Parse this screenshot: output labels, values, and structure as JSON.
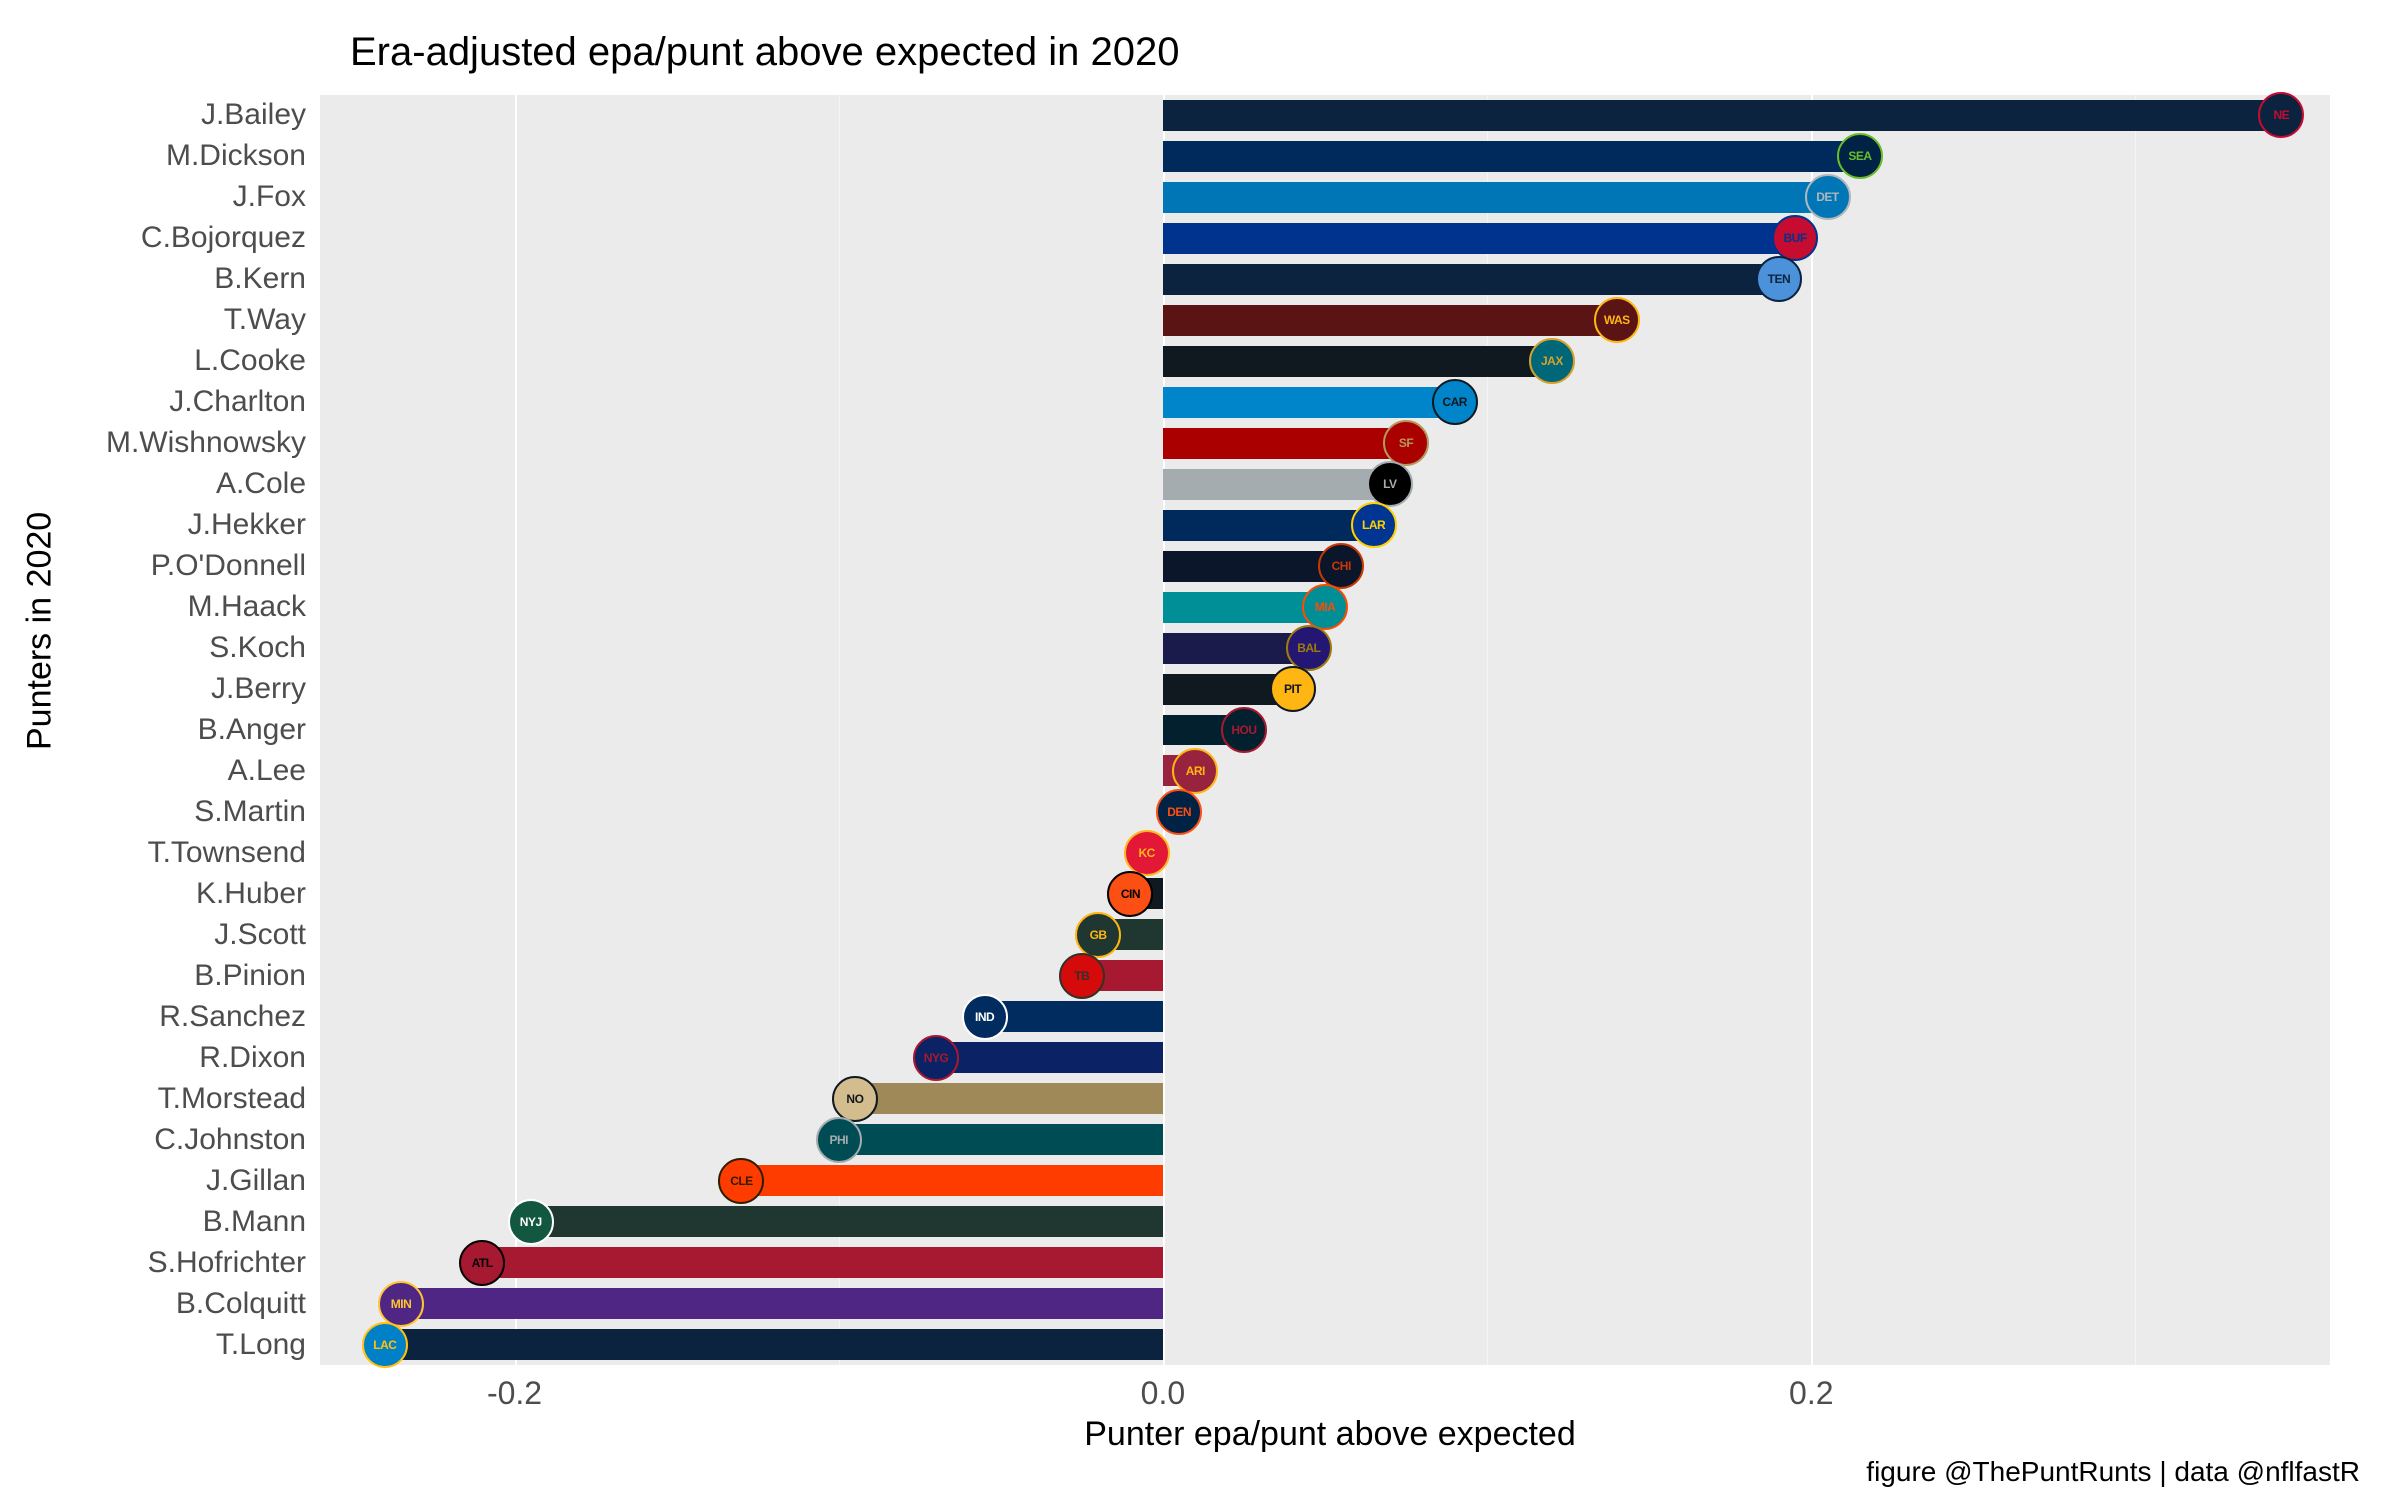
{
  "chart": {
    "type": "bar-horizontal",
    "title": "Era-adjusted epa/punt above expected in 2020",
    "x_axis_title": "Punter epa/punt above expected",
    "y_axis_title": "Punters in 2020",
    "caption": "figure @ThePuntRunts | data @nflfastR",
    "background_color": "#ffffff",
    "panel_color": "#ebebeb",
    "grid_color": "#ffffff",
    "text_color": "#4d4d4d",
    "title_fontsize": 40,
    "axis_title_fontsize": 34,
    "tick_fontsize": 32,
    "caption_fontsize": 28,
    "x_range": [
      -0.26,
      0.36
    ],
    "x_ticks": [
      -0.2,
      0.0,
      0.2
    ],
    "x_tick_labels": [
      "-0.2",
      "0.0",
      "0.2"
    ],
    "x_minor_ticks": [
      -0.1,
      0.1,
      0.3
    ],
    "bar_height_ratio": 0.75,
    "players": [
      {
        "name": "J.Bailey",
        "value": 0.345,
        "color": "#0c2340",
        "team": "NE",
        "logo_bg": "#0c2340",
        "logo_fg": "#c60c30"
      },
      {
        "name": "M.Dickson",
        "value": 0.215,
        "color": "#002a5c",
        "team": "SEA",
        "logo_bg": "#002244",
        "logo_fg": "#69be28"
      },
      {
        "name": "J.Fox",
        "value": 0.205,
        "color": "#0076b6",
        "team": "DET",
        "logo_bg": "#0076b6",
        "logo_fg": "#b0b7bc"
      },
      {
        "name": "C.Bojorquez",
        "value": 0.195,
        "color": "#00338d",
        "team": "BUF",
        "logo_bg": "#c60c30",
        "logo_fg": "#00338d"
      },
      {
        "name": "B.Kern",
        "value": 0.19,
        "color": "#0c2340",
        "team": "TEN",
        "logo_bg": "#4b92db",
        "logo_fg": "#0c2340"
      },
      {
        "name": "T.Way",
        "value": 0.14,
        "color": "#5a1414",
        "team": "WAS",
        "logo_bg": "#5a1414",
        "logo_fg": "#ffb612"
      },
      {
        "name": "L.Cooke",
        "value": 0.12,
        "color": "#101820",
        "team": "JAX",
        "logo_bg": "#006778",
        "logo_fg": "#d7a22a"
      },
      {
        "name": "J.Charlton",
        "value": 0.09,
        "color": "#0085ca",
        "team": "CAR",
        "logo_bg": "#0085ca",
        "logo_fg": "#101820"
      },
      {
        "name": "M.Wishnowsky",
        "value": 0.075,
        "color": "#aa0000",
        "team": "SF",
        "logo_bg": "#aa0000",
        "logo_fg": "#b3995d"
      },
      {
        "name": "A.Cole",
        "value": 0.07,
        "color": "#a5acaf",
        "team": "LV",
        "logo_bg": "#000000",
        "logo_fg": "#a5acaf"
      },
      {
        "name": "J.Hekker",
        "value": 0.065,
        "color": "#002a5c",
        "team": "LAR",
        "logo_bg": "#003594",
        "logo_fg": "#ffd100"
      },
      {
        "name": "P.O'Donnell",
        "value": 0.055,
        "color": "#0b162a",
        "team": "CHI",
        "logo_bg": "#0b162a",
        "logo_fg": "#c83803"
      },
      {
        "name": "M.Haack",
        "value": 0.05,
        "color": "#008e97",
        "team": "MIA",
        "logo_bg": "#008e97",
        "logo_fg": "#fc4c02"
      },
      {
        "name": "S.Koch",
        "value": 0.045,
        "color": "#1a1a4b",
        "team": "BAL",
        "logo_bg": "#241773",
        "logo_fg": "#9e7c0c"
      },
      {
        "name": "J.Berry",
        "value": 0.04,
        "color": "#101820",
        "team": "PIT",
        "logo_bg": "#ffb612",
        "logo_fg": "#101820"
      },
      {
        "name": "B.Anger",
        "value": 0.025,
        "color": "#03202f",
        "team": "HOU",
        "logo_bg": "#03202f",
        "logo_fg": "#a71930"
      },
      {
        "name": "A.Lee",
        "value": 0.01,
        "color": "#97233f",
        "team": "ARI",
        "logo_bg": "#97233f",
        "logo_fg": "#ffb612"
      },
      {
        "name": "S.Martin",
        "value": 0.005,
        "color": "#002a5c",
        "team": "DEN",
        "logo_bg": "#002244",
        "logo_fg": "#fb4f14"
      },
      {
        "name": "T.Townsend",
        "value": -0.005,
        "color": "#e31837",
        "team": "KC",
        "logo_bg": "#e31837",
        "logo_fg": "#ffb81c"
      },
      {
        "name": "K.Huber",
        "value": -0.01,
        "color": "#101820",
        "team": "CIN",
        "logo_bg": "#fb4f14",
        "logo_fg": "#000000"
      },
      {
        "name": "J.Scott",
        "value": -0.02,
        "color": "#203731",
        "team": "GB",
        "logo_bg": "#203731",
        "logo_fg": "#ffb612"
      },
      {
        "name": "B.Pinion",
        "value": -0.025,
        "color": "#a71930",
        "team": "TB",
        "logo_bg": "#d50a0a",
        "logo_fg": "#34302b"
      },
      {
        "name": "R.Sanchez",
        "value": -0.055,
        "color": "#002c5f",
        "team": "IND",
        "logo_bg": "#002c5f",
        "logo_fg": "#ffffff"
      },
      {
        "name": "R.Dixon",
        "value": -0.07,
        "color": "#0b2265",
        "team": "NYG",
        "logo_bg": "#0b2265",
        "logo_fg": "#a71930"
      },
      {
        "name": "T.Morstead",
        "value": -0.095,
        "color": "#9f8958",
        "team": "NO",
        "logo_bg": "#d3bc8d",
        "logo_fg": "#101820"
      },
      {
        "name": "C.Johnston",
        "value": -0.1,
        "color": "#004c54",
        "team": "PHI",
        "logo_bg": "#004c54",
        "logo_fg": "#a5acaf"
      },
      {
        "name": "J.Gillan",
        "value": -0.13,
        "color": "#ff3c00",
        "team": "CLE",
        "logo_bg": "#ff3c00",
        "logo_fg": "#311d00"
      },
      {
        "name": "B.Mann",
        "value": -0.195,
        "color": "#203731",
        "team": "NYJ",
        "logo_bg": "#125740",
        "logo_fg": "#ffffff"
      },
      {
        "name": "S.Hofrichter",
        "value": -0.21,
        "color": "#a71930",
        "team": "ATL",
        "logo_bg": "#a71930",
        "logo_fg": "#000000"
      },
      {
        "name": "B.Colquitt",
        "value": -0.235,
        "color": "#4f2683",
        "team": "MIN",
        "logo_bg": "#4f2683",
        "logo_fg": "#ffc62f"
      },
      {
        "name": "T.Long",
        "value": -0.24,
        "color": "#0c2340",
        "team": "LAC",
        "logo_bg": "#0080c6",
        "logo_fg": "#ffc20e"
      }
    ]
  }
}
